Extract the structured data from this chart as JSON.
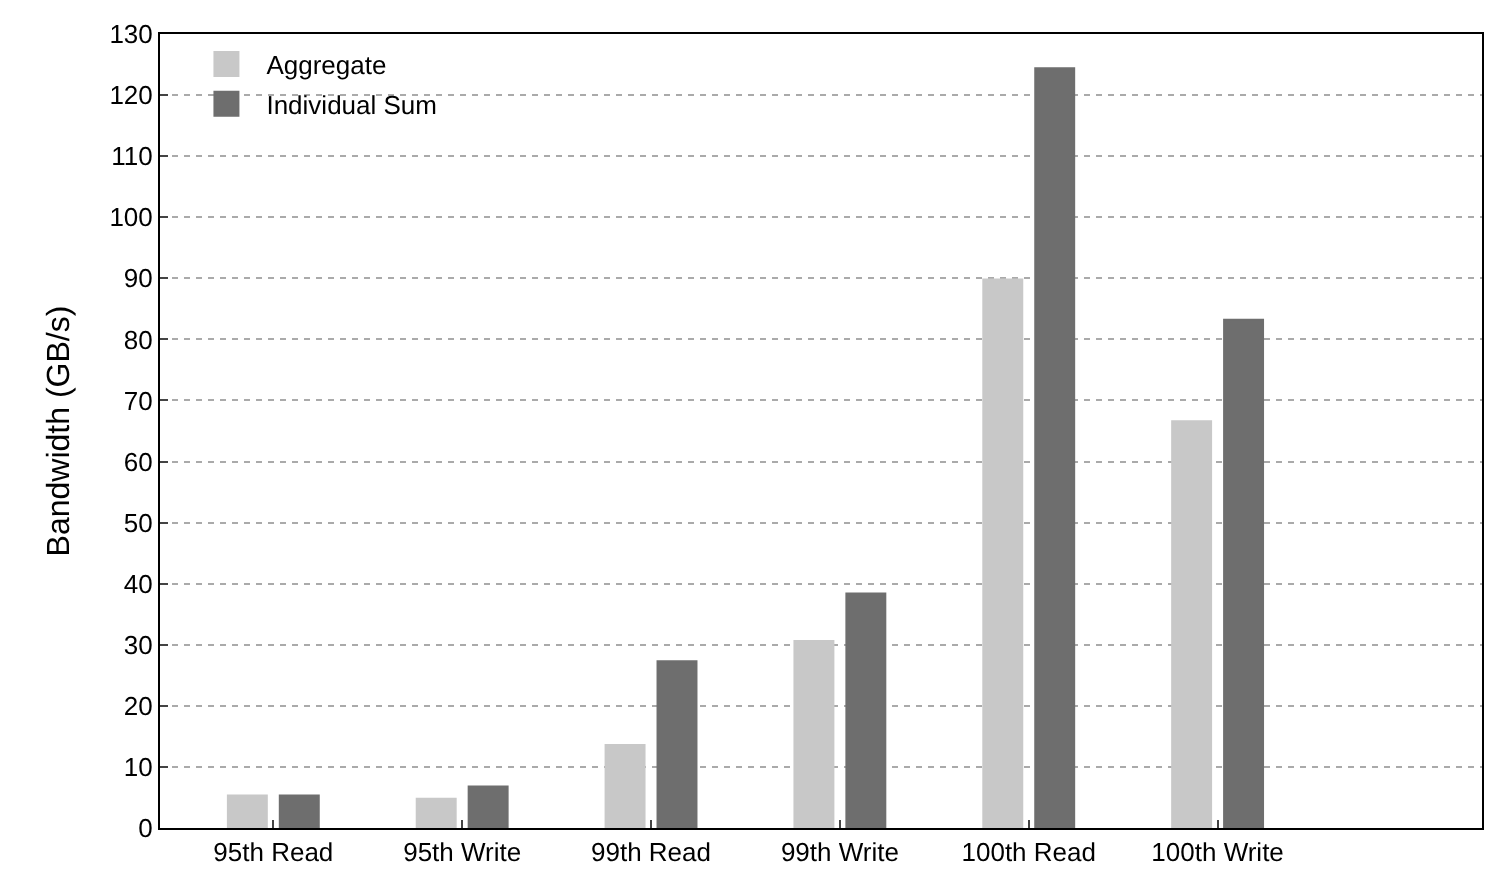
{
  "chart_data": {
    "type": "bar",
    "ylabel": "Bandwidth (GB/s)",
    "categories": [
      "95th Read",
      "95th Write",
      "99th Read",
      "99th Write",
      "100th Read",
      "100th Write"
    ],
    "series": [
      {
        "name": "Aggregate",
        "color": "#c8c8c8",
        "values": [
          5.3,
          4.8,
          13.6,
          30.6,
          89.8,
          66.6
        ]
      },
      {
        "name": "Individual Sum",
        "color": "#6e6e6e",
        "values": [
          5.3,
          6.8,
          27.3,
          38.4,
          124.4,
          83.2
        ]
      }
    ],
    "ylim": [
      0,
      130
    ],
    "yticks": [
      0,
      10,
      20,
      30,
      40,
      50,
      60,
      70,
      80,
      90,
      100,
      110,
      120,
      130
    ],
    "grid": "y",
    "legend": "top left"
  }
}
